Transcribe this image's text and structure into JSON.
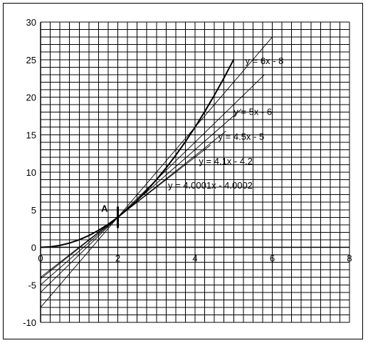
{
  "chart_data": {
    "type": "line",
    "title": "",
    "xlabel": "",
    "ylabel": "",
    "xlim": [
      0,
      8
    ],
    "ylim": [
      -10,
      30
    ],
    "x_ticks": [
      0,
      2,
      4,
      6,
      8
    ],
    "y_ticks": [
      -10,
      -5,
      0,
      5,
      10,
      15,
      20,
      25,
      30
    ],
    "x_minor_step": 0.25,
    "y_minor_step": 1,
    "grid": true,
    "legend": "none",
    "curve": {
      "x": [
        0,
        0.25,
        0.5,
        0.75,
        1,
        1.25,
        1.5,
        1.75,
        2,
        2.25,
        2.5,
        2.75,
        3,
        3.25,
        3.5,
        3.75,
        4,
        4.25,
        4.5,
        4.75,
        5
      ],
      "y": [
        0,
        0.0625,
        0.25,
        0.5625,
        1,
        1.5625,
        2.25,
        3.0625,
        4,
        5.0625,
        6.25,
        7.5625,
        9,
        10.5625,
        12.25,
        14.0625,
        16,
        18.0625,
        20.25,
        22.5625,
        25
      ]
    },
    "series": [
      {
        "slope": 6,
        "intercept": -8,
        "x": [
          0,
          6
        ],
        "label": "y = 6x - 8",
        "label_at": [
          5.3,
          24.9
        ]
      },
      {
        "slope": 5,
        "intercept": -6,
        "x": [
          0,
          5.8
        ],
        "label": "y = 5x - 6",
        "label_at": [
          5.0,
          18.1
        ]
      },
      {
        "slope": 4.5,
        "intercept": -5,
        "x": [
          0,
          5.2
        ],
        "label": "y = 4.5x - 5",
        "label_at": [
          4.6,
          14.8
        ]
      },
      {
        "slope": 4.1,
        "intercept": -4.2,
        "x": [
          0,
          4.8
        ],
        "label": "y = 4.1x - 4.2",
        "label_at": [
          4.1,
          11.5
        ]
      },
      {
        "slope": 4.0001,
        "intercept": -4.0002,
        "x": [
          0,
          4.4
        ],
        "label": "y = 4.0001x - 4.0002",
        "label_at": [
          3.3,
          8.3
        ]
      }
    ],
    "point": {
      "label": "A",
      "x": 2,
      "y": 4
    }
  }
}
